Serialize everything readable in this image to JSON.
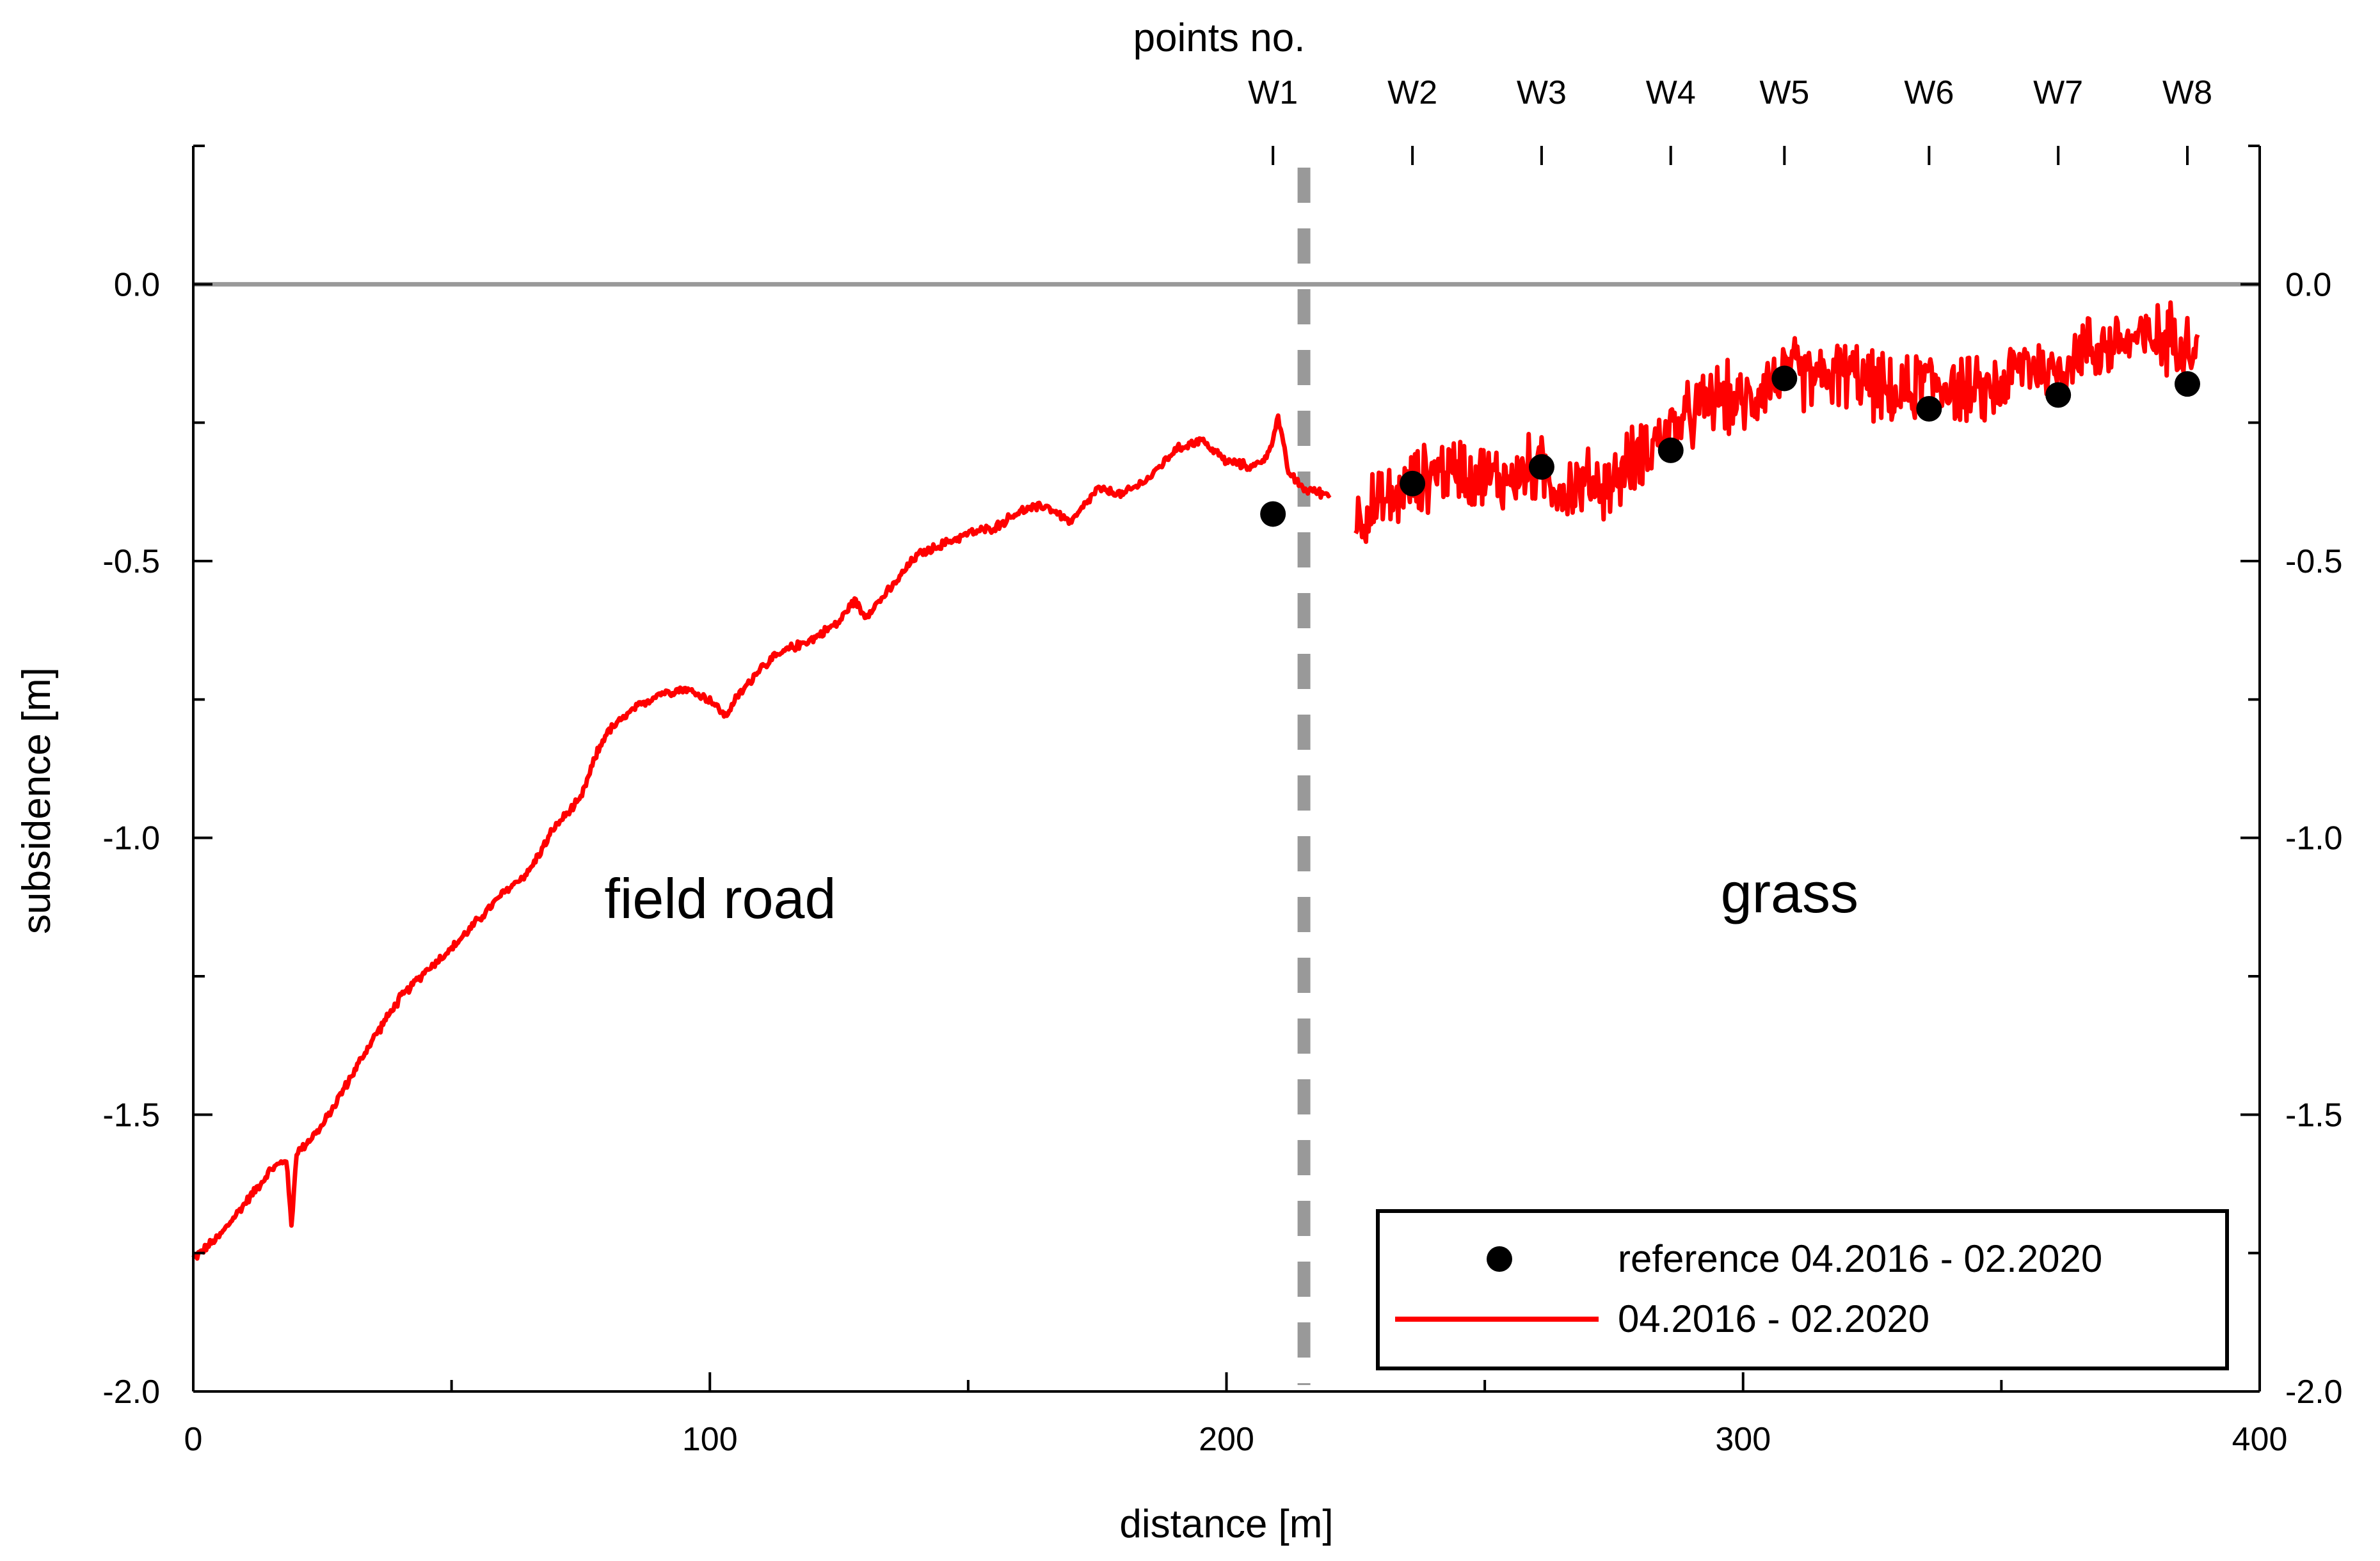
{
  "chart_data": {
    "type": "line",
    "title": "",
    "xlabel": "distance [m]",
    "ylabel": "subsidence [m]",
    "top_axis_label": "points no.",
    "xlim": [
      0,
      400
    ],
    "ylim": [
      -2.0,
      0.25
    ],
    "xticks": [
      0,
      100,
      200,
      300,
      400
    ],
    "xtick_labels": [
      "0",
      "100",
      "200",
      "300",
      "400"
    ],
    "yticks": [
      0.0,
      -0.5,
      -1.0,
      -1.5,
      -2.0
    ],
    "ytick_labels": [
      "0.0",
      "-0.5",
      "-1.0",
      "-1.5",
      "-2.0"
    ],
    "reference_line_y": 0.0,
    "boundary_x": 215,
    "regions": [
      {
        "label": "field road",
        "x": 102,
        "y": -1.11
      },
      {
        "label": "grass",
        "x": 309,
        "y": -1.1
      }
    ],
    "points": [
      {
        "name": "W1",
        "x": 209,
        "y": -0.415
      },
      {
        "name": "W2",
        "x": 236,
        "y": -0.36
      },
      {
        "name": "W3",
        "x": 261,
        "y": -0.33
      },
      {
        "name": "W4",
        "x": 286,
        "y": -0.3
      },
      {
        "name": "W5",
        "x": 308,
        "y": -0.17
      },
      {
        "name": "W6",
        "x": 336,
        "y": -0.225
      },
      {
        "name": "W7",
        "x": 361,
        "y": -0.2
      },
      {
        "name": "W8",
        "x": 386,
        "y": -0.18
      }
    ],
    "series": [
      {
        "name": "reference 04.2016 - 02.2020",
        "kind": "scatter",
        "color": "#000000",
        "x": [
          209,
          236,
          261,
          286,
          308,
          336,
          361,
          386
        ],
        "y": [
          -0.415,
          -0.36,
          -0.33,
          -0.3,
          -0.17,
          -0.225,
          -0.2,
          -0.18
        ]
      },
      {
        "name": "04.2016 - 02.2020",
        "kind": "line",
        "color": "#ff0000",
        "noise_after_x": 225,
        "segments": [
          {
            "x": [
              0,
              5,
              10,
              15,
              18,
              19,
              20,
              25,
              30,
              35,
              40,
              45,
              50,
              55,
              60,
              65,
              70,
              75,
              78,
              80,
              85,
              90,
              95,
              100,
              103,
              105,
              110,
              115,
              120,
              125,
              128,
              130,
              135,
              140,
              145,
              150,
              155,
              160,
              165,
              170,
              175,
              180,
              185,
              190,
              195,
              200,
              205,
              208,
              210,
              212,
              215,
              220
            ],
            "y": [
              -1.76,
              -1.72,
              -1.66,
              -1.6,
              -1.58,
              -1.7,
              -1.57,
              -1.52,
              -1.44,
              -1.36,
              -1.29,
              -1.24,
              -1.2,
              -1.15,
              -1.1,
              -1.06,
              -0.98,
              -0.93,
              -0.85,
              -0.81,
              -0.77,
              -0.74,
              -0.73,
              -0.75,
              -0.78,
              -0.75,
              -0.69,
              -0.66,
              -0.64,
              -0.61,
              -0.57,
              -0.6,
              -0.55,
              -0.49,
              -0.47,
              -0.45,
              -0.44,
              -0.41,
              -0.4,
              -0.43,
              -0.37,
              -0.38,
              -0.35,
              -0.3,
              -0.28,
              -0.32,
              -0.33,
              -0.31,
              -0.24,
              -0.34,
              -0.37,
              -0.38
            ]
          },
          {
            "x": [
              225,
              230,
              235,
              240,
              245,
              250,
              255,
              260,
              265,
              270,
              275,
              280,
              285,
              290,
              295,
              300,
              305,
              310,
              315,
              320,
              325,
              330,
              335,
              340,
              345,
              350,
              355,
              360,
              365,
              370,
              375,
              380,
              385,
              388
            ],
            "y": [
              -0.42,
              -0.4,
              -0.37,
              -0.34,
              -0.33,
              -0.35,
              -0.35,
              -0.33,
              -0.37,
              -0.36,
              -0.36,
              -0.3,
              -0.27,
              -0.24,
              -0.2,
              -0.22,
              -0.17,
              -0.16,
              -0.17,
              -0.16,
              -0.18,
              -0.21,
              -0.17,
              -0.18,
              -0.2,
              -0.18,
              -0.14,
              -0.16,
              -0.12,
              -0.11,
              -0.1,
              -0.1,
              -0.09,
              -0.12
            ]
          }
        ]
      }
    ],
    "legend": {
      "position": "bottom-right",
      "entries": [
        "reference 04.2016 - 02.2020",
        "04.2016 - 02.2020"
      ]
    },
    "colors": {
      "line": "#ff0000",
      "marker": "#000000",
      "zero_line": "#999999",
      "boundary": "#999999",
      "axes": "#000000"
    }
  }
}
